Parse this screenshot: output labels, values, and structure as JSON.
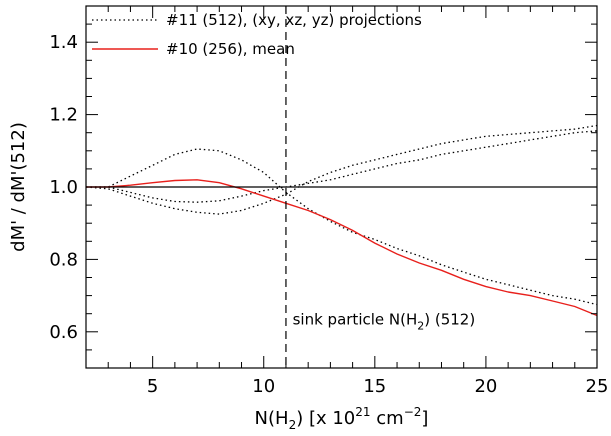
{
  "chart_data": {
    "type": "line",
    "xlim": [
      2,
      25
    ],
    "ylim": [
      0.5,
      1.5
    ],
    "x_ticks": [
      5,
      10,
      15,
      20,
      25
    ],
    "y_ticks": [
      0.6,
      0.8,
      1.0,
      1.2,
      1.4
    ],
    "x_tick_labels": [
      "5",
      "10",
      "15",
      "20",
      "25"
    ],
    "y_tick_labels": [
      "0.6",
      "0.8",
      "1.0",
      "1.2",
      "1.4"
    ],
    "xlabel": {
      "prefix": "N(H",
      "sub": "2",
      "mid": ") [x 10",
      "sup1": "21",
      "unit": " cm",
      "sup2": "−2",
      "suffix": "]"
    },
    "ylabel": "dM' / dM'(512)",
    "legend_position": "top-left",
    "legend": [
      {
        "label": "#11 (512), (xy, xz, yz) projections",
        "style": "dotted",
        "color": "#000000"
      },
      {
        "label": "#10 (256), mean",
        "style": "solid",
        "color": "#e8201c"
      }
    ],
    "reference_line": {
      "y": 1.0,
      "color": "#000000"
    },
    "vertical_line": {
      "x": 11.0,
      "style": "dashed",
      "color": "#000000"
    },
    "annotation": {
      "prefix": "sink particle N(H",
      "sub": "2",
      "suffix": ") (512)",
      "x": 11.3,
      "y": 0.62
    },
    "series": [
      {
        "name": "#11 (512), (xy, xz, yz) projections",
        "style": "dotted",
        "color": "#000000",
        "x": [
          2,
          3,
          4,
          5,
          6,
          7,
          8,
          9,
          10,
          11,
          12,
          13,
          14,
          15,
          16,
          17,
          18,
          19,
          20,
          21,
          22,
          23,
          24,
          25
        ],
        "y": [
          1.0,
          1.0,
          1.03,
          1.06,
          1.09,
          1.105,
          1.1,
          1.075,
          1.04,
          0.985,
          0.94,
          0.905,
          0.875,
          0.855,
          0.83,
          0.81,
          0.785,
          0.765,
          0.745,
          0.73,
          0.715,
          0.7,
          0.69,
          0.675
        ]
      },
      {
        "name": "#11 (512), (xy, xz, yz) projections",
        "style": "dotted",
        "color": "#000000",
        "x": [
          2,
          3,
          4,
          5,
          6,
          7,
          8,
          9,
          10,
          11,
          12,
          13,
          14,
          15,
          16,
          17,
          18,
          19,
          20,
          21,
          22,
          23,
          24,
          25
        ],
        "y": [
          1.0,
          0.995,
          0.975,
          0.955,
          0.94,
          0.93,
          0.925,
          0.935,
          0.955,
          0.98,
          1.015,
          1.04,
          1.06,
          1.075,
          1.09,
          1.105,
          1.12,
          1.13,
          1.14,
          1.145,
          1.15,
          1.155,
          1.16,
          1.17
        ]
      },
      {
        "name": "#11 (512), (xy, xz, yz) projections",
        "style": "dotted",
        "color": "#000000",
        "x": [
          2,
          3,
          4,
          5,
          6,
          7,
          8,
          9,
          10,
          11,
          12,
          13,
          14,
          15,
          16,
          17,
          18,
          19,
          20,
          21,
          22,
          23,
          24,
          25
        ],
        "y": [
          1.0,
          1.0,
          0.985,
          0.97,
          0.96,
          0.958,
          0.962,
          0.975,
          0.99,
          1.0,
          1.01,
          1.02,
          1.035,
          1.05,
          1.065,
          1.075,
          1.09,
          1.1,
          1.11,
          1.12,
          1.13,
          1.14,
          1.15,
          1.155
        ]
      },
      {
        "name": "#10 (256), mean",
        "style": "solid",
        "color": "#e8201c",
        "x": [
          2,
          3,
          4,
          5,
          6,
          7,
          8,
          9,
          10,
          11,
          12,
          13,
          14,
          15,
          16,
          17,
          18,
          19,
          20,
          21,
          22,
          23,
          24,
          25
        ],
        "y": [
          1.0,
          1.0,
          1.005,
          1.012,
          1.018,
          1.02,
          1.012,
          0.995,
          0.975,
          0.955,
          0.935,
          0.91,
          0.88,
          0.845,
          0.815,
          0.79,
          0.77,
          0.745,
          0.725,
          0.71,
          0.7,
          0.685,
          0.67,
          0.645
        ]
      }
    ]
  }
}
